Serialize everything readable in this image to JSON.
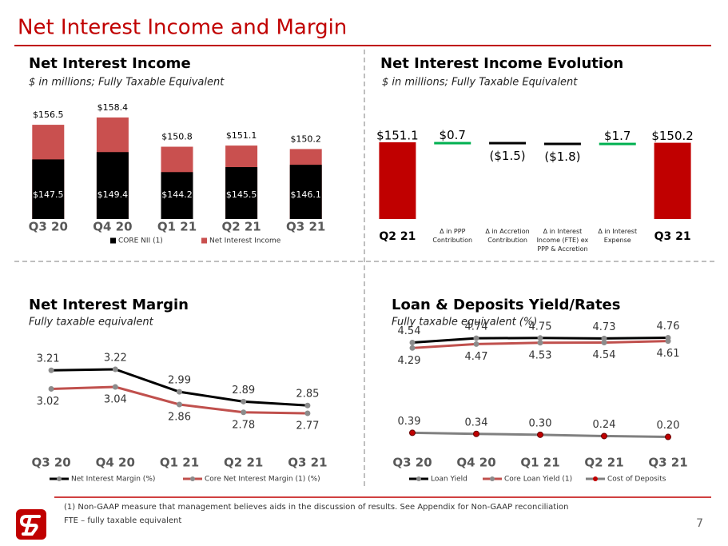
{
  "title": "Net Interest Income and Margin",
  "footnote": "(1)  Non-GAAP measure that management believes aids in the discussion of results. See Appendix for Non-GAAP reconciliation",
  "fte_note": "FTE – fully taxable equivalent",
  "page_number": "7",
  "chart_data": [
    {
      "type": "bar",
      "overlap": true,
      "title": "Net Interest Income",
      "subtitle": "$ in millions; Fully Taxable Equivalent",
      "categories": [
        "Q3 20",
        "Q4 20",
        "Q1 21",
        "Q2 21",
        "Q3 21"
      ],
      "series": [
        {
          "name": "CORE NII (1)",
          "color": "#000000",
          "values": [
            147.5,
            149.4,
            144.2,
            145.5,
            146.1
          ],
          "value_labels": [
            "$147.5",
            "$149.4",
            "$144.2",
            "$145.5",
            "$146.1"
          ]
        },
        {
          "name": "Net Interest Income",
          "color": "#c9504f",
          "values": [
            156.5,
            158.4,
            150.8,
            151.1,
            150.2
          ],
          "value_labels": [
            "$156.5",
            "$158.4",
            "$150.8",
            "$151.1",
            "$150.2"
          ]
        }
      ],
      "ylim": [
        132,
        164
      ]
    },
    {
      "type": "waterfall",
      "title": "Net Interest Income Evolution",
      "subtitle": "$ in millions; Fully Taxable Equivalent",
      "categories": [
        "Q2 21",
        "Δ in PPP Contribution",
        "Δ in Accretion Contribution",
        "Δ in Interest Income (FTE) ex PPP & Accretion",
        "Δ in Interest Expense",
        "Q3 21"
      ],
      "values": [
        151.1,
        0.7,
        -1.5,
        -1.8,
        1.7,
        150.2
      ],
      "value_labels": [
        "$151.1",
        "$0.7",
        "($1.5)",
        "($1.8)",
        "$1.7",
        "$150.2"
      ],
      "total_color": "#c00000",
      "increase_color": "#00b050",
      "decrease_color": "#000000",
      "ylim": [
        0,
        170
      ]
    },
    {
      "type": "line",
      "title": "Net Interest Margin",
      "subtitle": "Fully taxable equivalent",
      "categories": [
        "Q3 20",
        "Q4 20",
        "Q1 21",
        "Q2 21",
        "Q3 21"
      ],
      "series": [
        {
          "name": "Net Interest Margin (%)",
          "color": "#000000",
          "marker_color": "#8c8c8c",
          "values": [
            3.21,
            3.22,
            2.99,
            2.89,
            2.85
          ]
        },
        {
          "name": "Core Net Interest Margin (1) (%)",
          "color": "#c0504d",
          "marker_color": "#8c8c8c",
          "values": [
            3.02,
            3.04,
            2.86,
            2.78,
            2.77
          ]
        }
      ],
      "ylim": [
        2.5,
        3.4
      ]
    },
    {
      "type": "line",
      "title": "Loan & Deposits Yield/Rates",
      "subtitle": "Fully taxable equivalent (%)",
      "categories": [
        "Q3 20",
        "Q4 20",
        "Q1 21",
        "Q2 21",
        "Q3 21"
      ],
      "series": [
        {
          "name": "Loan Yield",
          "color": "#000000",
          "marker_color": "#8c8c8c",
          "values": [
            4.54,
            4.74,
            4.75,
            4.73,
            4.76
          ]
        },
        {
          "name": "Core Loan Yield (1)",
          "color": "#c0504d",
          "marker_color": "#8c8c8c",
          "values": [
            4.29,
            4.47,
            4.53,
            4.54,
            4.61
          ]
        },
        {
          "name": "Cost of Deposits",
          "color": "#808080",
          "marker_color": "#c00000",
          "values": [
            0.39,
            0.34,
            0.3,
            0.24,
            0.2
          ],
          "value_labels": [
            "0.39",
            "0.34",
            "0.30",
            "0.24",
            "0.20"
          ]
        }
      ],
      "ylim": [
        0,
        5
      ]
    }
  ]
}
